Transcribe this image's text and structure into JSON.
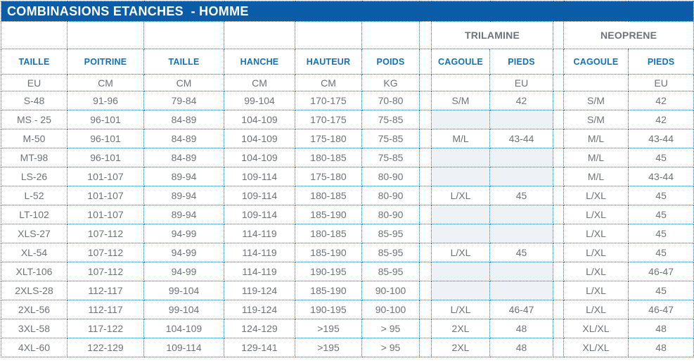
{
  "header": {
    "title": "COMBINASIONS ETANCHES  - HOMME"
  },
  "groups": {
    "trilamine": "TRILAMINE",
    "neoprene": "NEOPRENE"
  },
  "columns": [
    "TAILLE",
    "POITRINE",
    "TAILLE",
    "HANCHE",
    "HAUTEUR",
    "POIDS",
    "CAGOULE",
    "PIEDS",
    "CAGOULE",
    "PIEDS"
  ],
  "units": [
    "EU",
    "CM",
    "CM",
    "CM",
    "CM",
    "KG",
    "",
    "EU",
    "",
    "EU"
  ],
  "column_keys": [
    "taille",
    "poitrine",
    "taille-2",
    "hanche",
    "hauteur",
    "poids",
    "trilamine-cagoule",
    "trilamine-pieds",
    "neoprene-cagoule",
    "neoprene-pieds"
  ],
  "rows": [
    [
      "S-48",
      "91-96",
      "79-84",
      "99-104",
      "170-175",
      "70-80",
      "S/M",
      "42",
      "S/M",
      "42"
    ],
    [
      "MS - 25",
      "96-101",
      "84-89",
      "104-109",
      "170-175",
      "75-85",
      null,
      null,
      "S/M",
      "42"
    ],
    [
      "M-50",
      "96-101",
      "84-89",
      "104-109",
      "175-180",
      "75-85",
      "M/L",
      "43-44",
      "M/L",
      "43-44"
    ],
    [
      "MT-98",
      "96-101",
      "84-89",
      "104-109",
      "180-185",
      "75-85",
      null,
      null,
      "M/L",
      "45"
    ],
    [
      "LS-26",
      "101-107",
      "89-94",
      "109-114",
      "175-180",
      "80-90",
      null,
      null,
      "M/L",
      "43-44"
    ],
    [
      "L-52",
      "101-107",
      "89-94",
      "109-114",
      "180-185",
      "80-90",
      "L/XL",
      "45",
      "L/XL",
      "45"
    ],
    [
      "LT-102",
      "101-107",
      "89-94",
      "109-114",
      "185-190",
      "80-90",
      null,
      null,
      "L/XL",
      "45"
    ],
    [
      "XLS-27",
      "107-112",
      "94-99",
      "114-119",
      "180-185",
      "85-95",
      null,
      null,
      "L/XL",
      "45"
    ],
    [
      "XL-54",
      "107-112",
      "94-99",
      "114-119",
      "185-190",
      "85-95",
      "L/XL",
      "45",
      "L/XL",
      "45"
    ],
    [
      "XLT-106",
      "107-112",
      "94-99",
      "114-119",
      "190-195",
      "85-95",
      null,
      null,
      "L/XL",
      "46-47"
    ],
    [
      "2XLS-28",
      "112-117",
      "99-104",
      "119-124",
      "185-190",
      "90-100",
      null,
      null,
      "L/XL",
      "45"
    ],
    [
      "2XL-56",
      "112-117",
      "99-104",
      "119-124",
      "190-195",
      "90-100",
      "L/XL",
      "46-47",
      "L/XL",
      "46-47"
    ],
    [
      "3XL-58",
      "117-122",
      "104-109",
      "124-129",
      ">195",
      "> 95",
      "2XL",
      "48",
      "XL/XL",
      "48"
    ],
    [
      "4XL-60",
      "122-129",
      "109-114",
      "129-141",
      ">195",
      "> 95",
      "2XL",
      "48",
      "XL/XL",
      "48"
    ]
  ],
  "colors": {
    "title_band": "#0b5ca6",
    "header_text": "#1273b8",
    "dotted_border": "#2176ad",
    "data_text": "#6d747c",
    "empty_cell_fill": "#eef1f6"
  }
}
